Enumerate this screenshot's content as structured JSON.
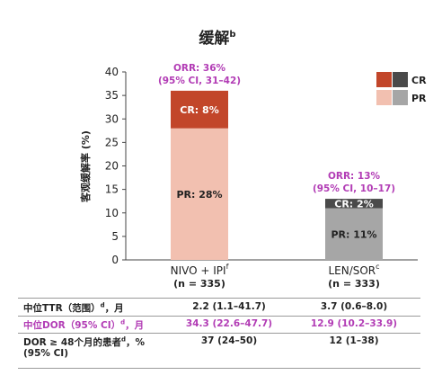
{
  "chart_data": {
    "type": "bar",
    "stacked": true,
    "title": "缓解",
    "title_superscript": "b",
    "ylabel": "客观缓解率 (%)",
    "ylim": [
      0,
      40
    ],
    "yticks": [
      0,
      5,
      10,
      15,
      20,
      25,
      30,
      35,
      40
    ],
    "grid": false,
    "legend_position": "top-right",
    "categories": [
      "NIVO + IPI",
      "LEN/SOR"
    ],
    "category_superscripts": [
      "f",
      "c"
    ],
    "category_n": [
      "(n = 335)",
      "(n = 333)"
    ],
    "series": [
      {
        "name": "PR",
        "values": [
          28,
          11
        ],
        "labels": [
          "PR: 28%",
          "PR: 11%"
        ],
        "colors": [
          "#f2c0b0",
          "#a6a6a6"
        ]
      },
      {
        "name": "CR",
        "values": [
          8,
          2
        ],
        "labels": [
          "CR: 8%",
          "CR: 2%"
        ],
        "colors": [
          "#c2462a",
          "#4a4a4a"
        ]
      }
    ],
    "orr_annotations": [
      {
        "line1": "ORR: 36%",
        "line2": "(95% CI, 31–42)"
      },
      {
        "line1": "ORR: 13%",
        "line2": "(95% CI, 10–17)"
      }
    ],
    "legend": [
      {
        "label": "CR",
        "colors": [
          "#c2462a",
          "#4a4a4a"
        ]
      },
      {
        "label": "PR",
        "colors": [
          "#f2c0b0",
          "#a6a6a6"
        ]
      }
    ],
    "accent_color": "#b23cb5"
  },
  "table": {
    "rows": [
      {
        "label": "中位TTR（范围）",
        "sup": "d",
        "label_suffix": "，月",
        "values": [
          "2.2 (1.1–41.7)",
          "3.7 (0.6–8.0)"
        ],
        "highlight": false
      },
      {
        "label": "中位DOR（95% CI）",
        "sup": "d",
        "label_suffix": "，月",
        "values": [
          "34.3 (22.6–47.7)",
          "12.9 (10.2–33.9)"
        ],
        "highlight": true
      },
      {
        "label": "DOR ≥ 48个月的患者",
        "sup": "d",
        "label_suffix": "，%",
        "label_line2": "(95% CI)",
        "values": [
          "37 (24–50)",
          "12 (1–38)"
        ],
        "highlight": false
      }
    ]
  }
}
